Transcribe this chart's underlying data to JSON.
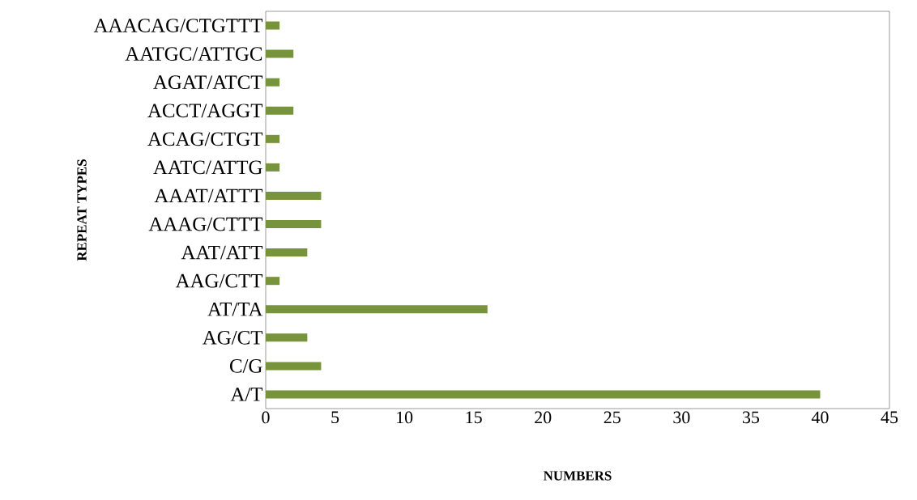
{
  "chart_data": {
    "type": "bar",
    "orientation": "horizontal",
    "xlabel": "NUMBERS",
    "ylabel": "REPEAT TYPES",
    "categories": [
      "AAACAG/CTGTTT",
      "AATGC/ATTGC",
      "AGAT/ATCT",
      "ACCT/AGGT",
      "ACAG/CTGT",
      "AATC/ATTG",
      "AAAT/ATTT",
      "AAAG/CTTT",
      "AAT/ATT",
      "AAG/CTT",
      "AT/TA",
      "AG/CT",
      "C/G",
      "A/T"
    ],
    "values": [
      1,
      2,
      1,
      2,
      1,
      1,
      4,
      4,
      3,
      1,
      16,
      3,
      4,
      40
    ],
    "color": "#77933c",
    "xlim": [
      0,
      45
    ],
    "xticks": [
      0,
      5,
      10,
      15,
      20,
      25,
      30,
      35,
      40,
      45
    ],
    "grid": false
  }
}
